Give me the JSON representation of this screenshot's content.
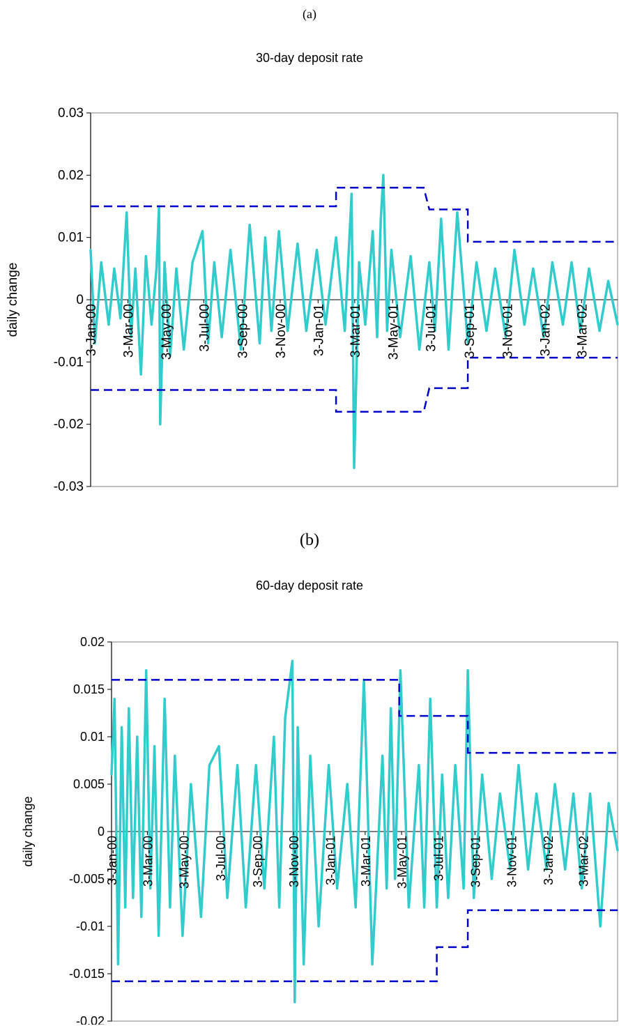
{
  "chart_data": [
    {
      "type": "line",
      "panel_label": "(a)",
      "title": "30-day deposit rate",
      "xlabel": "",
      "ylabel": "daily change",
      "ylim": [
        -0.03,
        0.03
      ],
      "yticks": [
        "0.03",
        "0.02",
        "0.01",
        "0",
        "-0.01",
        "-0.02",
        "-0.03"
      ],
      "xtick_labels": [
        "3-Jan-00",
        "3-Mar-00",
        "3-May-00",
        "3-Jul-00",
        "3-Sep-00",
        "3-Nov-00",
        "3-Jan-01",
        "3-Mar-01",
        "3-May-01",
        "3-Jul-01",
        "3-Sep-01",
        "3-Nov-01",
        "3-Jan-02",
        "3-Mar-02"
      ],
      "x_range": [
        "2000-01-03",
        "2002-04-30"
      ],
      "grid": false,
      "legend": "none",
      "colors": {
        "series": "#33CCCC",
        "bands": "#0000CC"
      },
      "series": [
        {
          "x": [
            "2000-01-03",
            "2000-01-10",
            "2000-01-20",
            "2000-02-01",
            "2000-02-10",
            "2000-02-20",
            "2000-03-01",
            "2000-03-08",
            "2000-03-15",
            "2000-03-24",
            "2000-04-01",
            "2000-04-10",
            "2000-04-18",
            "2000-04-22",
            "2000-04-24",
            "2000-05-01",
            "2000-05-10",
            "2000-05-20",
            "2000-06-01",
            "2000-06-15",
            "2000-07-01",
            "2000-07-10",
            "2000-07-20",
            "2000-08-01",
            "2000-08-15",
            "2000-09-01",
            "2000-09-15",
            "2000-10-01",
            "2000-10-10",
            "2000-10-20",
            "2000-11-01",
            "2000-11-15",
            "2000-12-01",
            "2000-12-15",
            "2001-01-01",
            "2001-01-15",
            "2001-02-01",
            "2001-02-15",
            "2001-02-26",
            "2001-03-02",
            "2001-03-10",
            "2001-03-20",
            "2001-04-01",
            "2001-04-08",
            "2001-04-14",
            "2001-04-18",
            "2001-04-24",
            "2001-05-01",
            "2001-05-15",
            "2001-06-01",
            "2001-06-15",
            "2001-07-01",
            "2001-07-10",
            "2001-07-20",
            "2001-08-01",
            "2001-08-15",
            "2001-09-01",
            "2001-09-15",
            "2001-10-01",
            "2001-10-15",
            "2001-11-01",
            "2001-11-15",
            "2001-12-01",
            "2001-12-15",
            "2002-01-01",
            "2002-01-15",
            "2002-02-01",
            "2002-02-15",
            "2002-03-01",
            "2002-03-15",
            "2002-04-01",
            "2002-04-15",
            "2002-04-30"
          ],
          "values": [
            0.008,
            -0.007,
            0.006,
            -0.004,
            0.005,
            -0.003,
            0.014,
            -0.006,
            0.005,
            -0.012,
            0.007,
            -0.004,
            0.005,
            0.015,
            -0.02,
            0.006,
            -0.009,
            0.005,
            -0.008,
            0.006,
            0.011,
            -0.007,
            0.006,
            -0.006,
            0.008,
            -0.008,
            0.012,
            -0.007,
            0.01,
            -0.005,
            0.011,
            -0.005,
            0.009,
            -0.005,
            0.008,
            -0.004,
            0.01,
            -0.005,
            0.017,
            -0.027,
            0.006,
            -0.004,
            0.011,
            -0.006,
            0.013,
            0.02,
            -0.005,
            0.008,
            -0.006,
            0.007,
            -0.008,
            0.006,
            -0.005,
            0.013,
            -0.008,
            0.014,
            -0.007,
            0.006,
            -0.005,
            0.005,
            -0.006,
            0.008,
            -0.004,
            0.005,
            -0.006,
            0.006,
            -0.004,
            0.006,
            -0.005,
            0.005,
            -0.005,
            0.003,
            -0.004
          ]
        }
      ],
      "bands": [
        {
          "x": [
            "2000-01-03",
            "2001-02-01",
            "2001-02-01",
            "2001-06-22",
            "2001-07-01",
            "2001-09-01",
            "2001-09-01",
            "2002-04-30"
          ],
          "upper": [
            0.015,
            0.015,
            0.018,
            0.018,
            0.0145,
            0.0145,
            0.0093,
            0.0093
          ],
          "lower": [
            -0.0145,
            -0.0145,
            -0.018,
            -0.018,
            -0.0142,
            -0.0142,
            -0.0093,
            -0.0093
          ]
        }
      ]
    },
    {
      "type": "line",
      "panel_label": "(b)",
      "title": "60-day deposit rate",
      "xlabel": "",
      "ylabel": "daily change",
      "ylim": [
        -0.02,
        0.02
      ],
      "yticks": [
        "0.02",
        "0.015",
        "0.01",
        "0.005",
        "0",
        "-0.005",
        "-0.01",
        "-0.015",
        "-0.02"
      ],
      "xtick_labels": [
        "3-Jan-00",
        "3-Mar-00",
        "3-May-00",
        "3-Jul-00",
        "3-Sep-00",
        "3-Nov-00",
        "3-Jan-01",
        "3-Mar-01",
        "3-May-01",
        "3-Jul-01",
        "3-Sep-01",
        "3-Nov-01",
        "3-Jan-02",
        "3-Mar-02"
      ],
      "x_range": [
        "2000-01-03",
        "2002-04-30"
      ],
      "grid": false,
      "legend": "none",
      "colors": {
        "series": "#33CCCC",
        "bands": "#0000CC"
      },
      "series": [
        {
          "x": [
            "2000-01-03",
            "2000-01-08",
            "2000-01-14",
            "2000-01-20",
            "2000-01-26",
            "2000-02-01",
            "2000-02-08",
            "2000-02-15",
            "2000-02-22",
            "2000-03-01",
            "2000-03-08",
            "2000-03-15",
            "2000-03-22",
            "2000-04-01",
            "2000-04-10",
            "2000-04-18",
            "2000-05-01",
            "2000-05-15",
            "2000-06-01",
            "2000-06-15",
            "2000-07-01",
            "2000-07-15",
            "2000-08-01",
            "2000-08-15",
            "2000-09-01",
            "2000-09-15",
            "2000-10-01",
            "2000-10-10",
            "2000-10-20",
            "2000-11-01",
            "2000-11-05",
            "2000-11-10",
            "2000-11-20",
            "2000-12-01",
            "2000-12-15",
            "2001-01-01",
            "2001-01-15",
            "2001-02-01",
            "2001-02-15",
            "2001-03-01",
            "2001-03-15",
            "2001-04-01",
            "2001-04-08",
            "2001-04-15",
            "2001-04-22",
            "2001-05-01",
            "2001-05-15",
            "2001-06-01",
            "2001-06-10",
            "2001-06-20",
            "2001-07-01",
            "2001-07-10",
            "2001-07-20",
            "2001-08-01",
            "2001-08-15",
            "2001-08-22",
            "2001-09-01",
            "2001-09-15",
            "2001-10-01",
            "2001-10-15",
            "2001-11-01",
            "2001-11-15",
            "2001-12-01",
            "2001-12-15",
            "2002-01-01",
            "2002-01-15",
            "2002-02-01",
            "2002-02-15",
            "2002-03-01",
            "2002-03-15",
            "2002-04-01",
            "2002-04-15",
            "2002-04-30"
          ],
          "values": [
            0.006,
            0.014,
            -0.014,
            0.011,
            -0.008,
            0.013,
            -0.007,
            0.01,
            -0.009,
            0.017,
            -0.006,
            0.009,
            -0.011,
            0.014,
            -0.008,
            0.008,
            -0.011,
            0.005,
            -0.009,
            0.007,
            0.009,
            -0.007,
            0.007,
            -0.008,
            0.007,
            -0.006,
            0.01,
            -0.008,
            0.012,
            0.018,
            -0.018,
            0.011,
            -0.014,
            0.008,
            -0.01,
            0.007,
            -0.006,
            0.005,
            -0.008,
            0.016,
            -0.014,
            0.008,
            -0.006,
            0.013,
            -0.005,
            0.017,
            -0.008,
            0.007,
            -0.008,
            0.014,
            -0.008,
            0.006,
            -0.007,
            0.007,
            -0.006,
            0.017,
            -0.007,
            0.006,
            -0.005,
            0.004,
            -0.004,
            0.007,
            -0.004,
            0.004,
            -0.004,
            0.005,
            -0.004,
            0.004,
            -0.006,
            0.004,
            -0.01,
            0.003,
            -0.002
          ]
        }
      ],
      "bands": [
        {
          "x": [
            "2000-01-03",
            "2001-04-29",
            "2001-04-29",
            "2001-07-01",
            "2001-07-01",
            "2001-08-22",
            "2001-08-22",
            "2002-04-30"
          ],
          "upper": [
            0.016,
            0.016,
            0.0122,
            0.0122,
            0.0122,
            0.0122,
            0.0083,
            0.0083
          ],
          "lower": [
            -0.0158,
            -0.0158,
            -0.0158,
            -0.0158,
            -0.0122,
            -0.0122,
            -0.0083,
            -0.0083
          ]
        }
      ]
    }
  ]
}
